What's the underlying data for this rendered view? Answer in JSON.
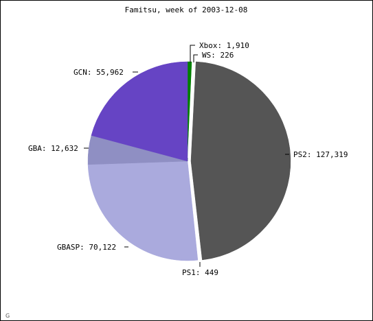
{
  "chart_data": {
    "type": "pie",
    "title": "Famitsu, week of 2003-12-08",
    "slices": [
      {
        "label": "Xbox",
        "value": 1910,
        "display": "1,910",
        "color": "#008000"
      },
      {
        "label": "WS",
        "value": 226,
        "display": "226",
        "color": "#ffffff"
      },
      {
        "label": "PS2",
        "value": 127319,
        "display": "127,319",
        "color": "#555555"
      },
      {
        "label": "PS1",
        "value": 449,
        "display": "449",
        "color": "#ffffff"
      },
      {
        "label": "GBASP",
        "value": 70122,
        "display": "70,122",
        "color": "#aaaadd"
      },
      {
        "label": "GBA",
        "value": 12632,
        "display": "12,632",
        "color": "#8f8fc3"
      },
      {
        "label": "GCN",
        "value": 55962,
        "display": "55,962",
        "color": "#6644c4"
      }
    ],
    "start_angle": "top",
    "direction": "clockwise",
    "exploded": [
      "WS",
      "PS2",
      "PS1"
    ]
  },
  "corner_mark": "G"
}
